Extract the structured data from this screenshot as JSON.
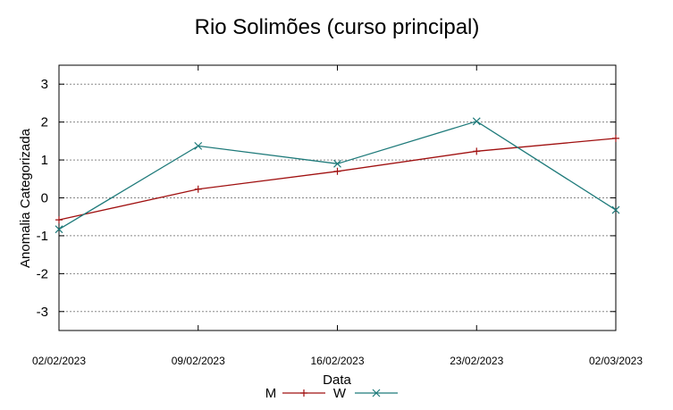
{
  "chart_data": {
    "type": "line",
    "title": "Rio Solimões (curso principal)",
    "xlabel": "Data",
    "ylabel": "Anomalia Categorizada",
    "categories": [
      "02/02/2023",
      "09/02/2023",
      "16/02/2023",
      "23/02/2023",
      "02/03/2023"
    ],
    "ylim": [
      -3.5,
      3.5
    ],
    "yticks": [
      "3",
      "2",
      "1",
      "0",
      "-1",
      "-2",
      "-3"
    ],
    "ytick_values": [
      3,
      2,
      1,
      0,
      -1,
      -2,
      -3
    ],
    "grid": true,
    "legend_position": "bottom",
    "series": [
      {
        "name": "M",
        "color": "#a01010",
        "marker": "plus",
        "values": [
          -0.58,
          0.23,
          0.7,
          1.23,
          1.57
        ]
      },
      {
        "name": "W",
        "color": "#1e7a7a",
        "marker": "x",
        "values": [
          -0.83,
          1.37,
          0.9,
          2.02,
          -0.32
        ]
      }
    ]
  }
}
